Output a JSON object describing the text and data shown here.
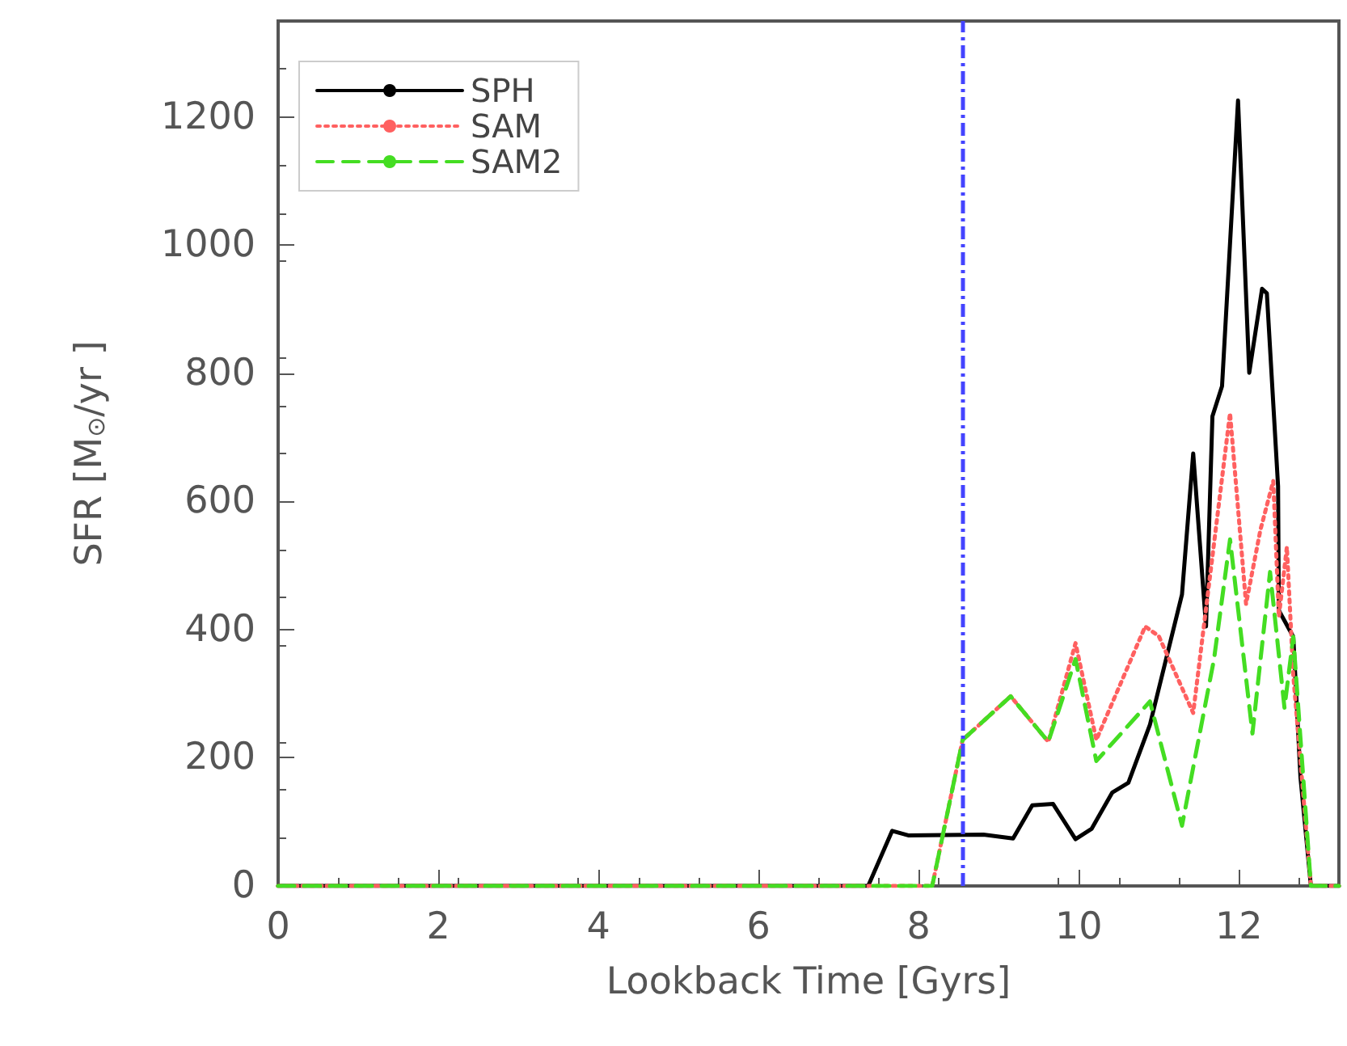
{
  "chart_data": {
    "type": "line",
    "xlabel": "Lookback Time [Gyrs]",
    "ylabel": "SFR [M$_{⊙}$/yr ]",
    "xlim": [
      0,
      13.25
    ],
    "ylim": [
      0,
      1350
    ],
    "xticks": [
      0,
      2,
      4,
      6,
      8,
      10,
      12
    ],
    "yticks": [
      0,
      200,
      400,
      600,
      800,
      1000,
      1200
    ],
    "grid": false,
    "legend": "top left",
    "marker": "none",
    "series": [
      {
        "name": "SPH",
        "color": "#000000",
        "line_style": "solid",
        "x": [
          0,
          7.37,
          7.67,
          7.87,
          8.81,
          9.18,
          9.42,
          9.68,
          9.96,
          10.16,
          10.42,
          10.62,
          10.89,
          11.29,
          11.43,
          11.59,
          11.67,
          11.79,
          11.99,
          12.13,
          12.29,
          12.35,
          12.49,
          12.5,
          12.68,
          12.77,
          12.9,
          13.25
        ],
        "values": [
          0,
          0,
          86,
          79,
          80,
          74,
          126,
          128,
          73,
          89,
          146,
          161,
          252,
          455,
          675,
          405,
          733,
          780,
          1226,
          801,
          932,
          925,
          624,
          430,
          389,
          169,
          0,
          0
        ]
      },
      {
        "name": "SAM",
        "color": "#ff6060",
        "line_style": "dotted",
        "x": [
          0,
          8.17,
          8.55,
          9.15,
          9.62,
          9.96,
          10.22,
          10.83,
          11.0,
          11.43,
          11.89,
          12.09,
          12.27,
          12.43,
          12.5,
          12.6,
          12.68,
          12.9,
          13.25
        ],
        "values": [
          0,
          0,
          228,
          296,
          225,
          379,
          228,
          405,
          390,
          270,
          738,
          440,
          556,
          632,
          420,
          529,
          329,
          0,
          0
        ]
      },
      {
        "name": "SAM2",
        "color": "#44dd22",
        "line_style": "dashed",
        "x": [
          0,
          8.17,
          8.55,
          9.15,
          9.62,
          9.96,
          10.22,
          10.89,
          11.29,
          11.69,
          11.89,
          12.17,
          12.39,
          12.57,
          12.68,
          12.9,
          13.25
        ],
        "values": [
          0,
          0,
          228,
          296,
          225,
          354,
          195,
          288,
          94,
          354,
          541,
          238,
          490,
          278,
          389,
          0,
          0
        ]
      }
    ],
    "ref_lines": [
      {
        "axis": "x",
        "value": 8.55,
        "color": "#4444ff",
        "line_style": "dashdot"
      }
    ]
  }
}
